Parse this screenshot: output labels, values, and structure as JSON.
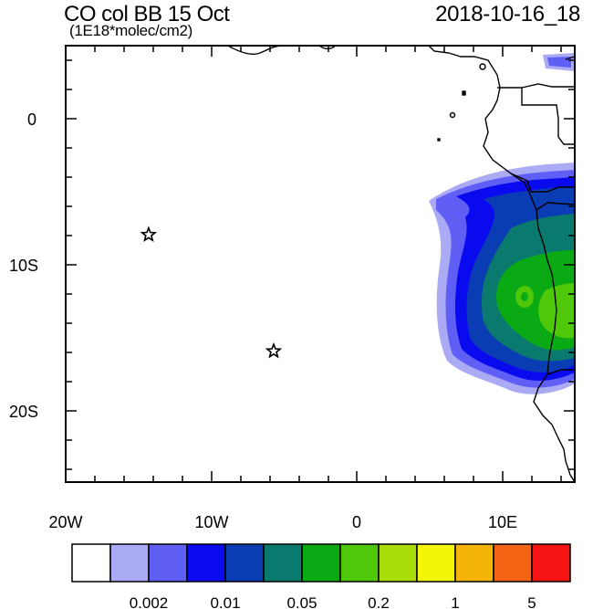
{
  "header": {
    "title": "CO col BB 15 Oct",
    "units": "(1E18*molec/cm2)",
    "datetime": "2018-10-16_18"
  },
  "axes": {
    "x_ticks": [
      "20W",
      "10W",
      "0",
      "10E"
    ],
    "y_ticks": [
      "0",
      "10S",
      "20S"
    ],
    "lon_range": [
      -20,
      15
    ],
    "lat_range": [
      -25,
      5
    ]
  },
  "markers": [
    {
      "name": "star-marker-1",
      "lon": -14.3,
      "lat": -8.0
    },
    {
      "name": "star-marker-2",
      "lon": -5.7,
      "lat": -16.0
    }
  ],
  "colorbar": {
    "colors": [
      "#ffffff",
      "#aaaaf5",
      "#5f5ff5",
      "#0a0aef",
      "#0a3cb4",
      "#0a7a6e",
      "#0aaa14",
      "#50c80a",
      "#aadc0a",
      "#f5f50a",
      "#f5b40a",
      "#f56414",
      "#f51414"
    ],
    "labels": [
      "0.002",
      "0.01",
      "0.05",
      "0.2",
      "1",
      "5"
    ]
  }
}
